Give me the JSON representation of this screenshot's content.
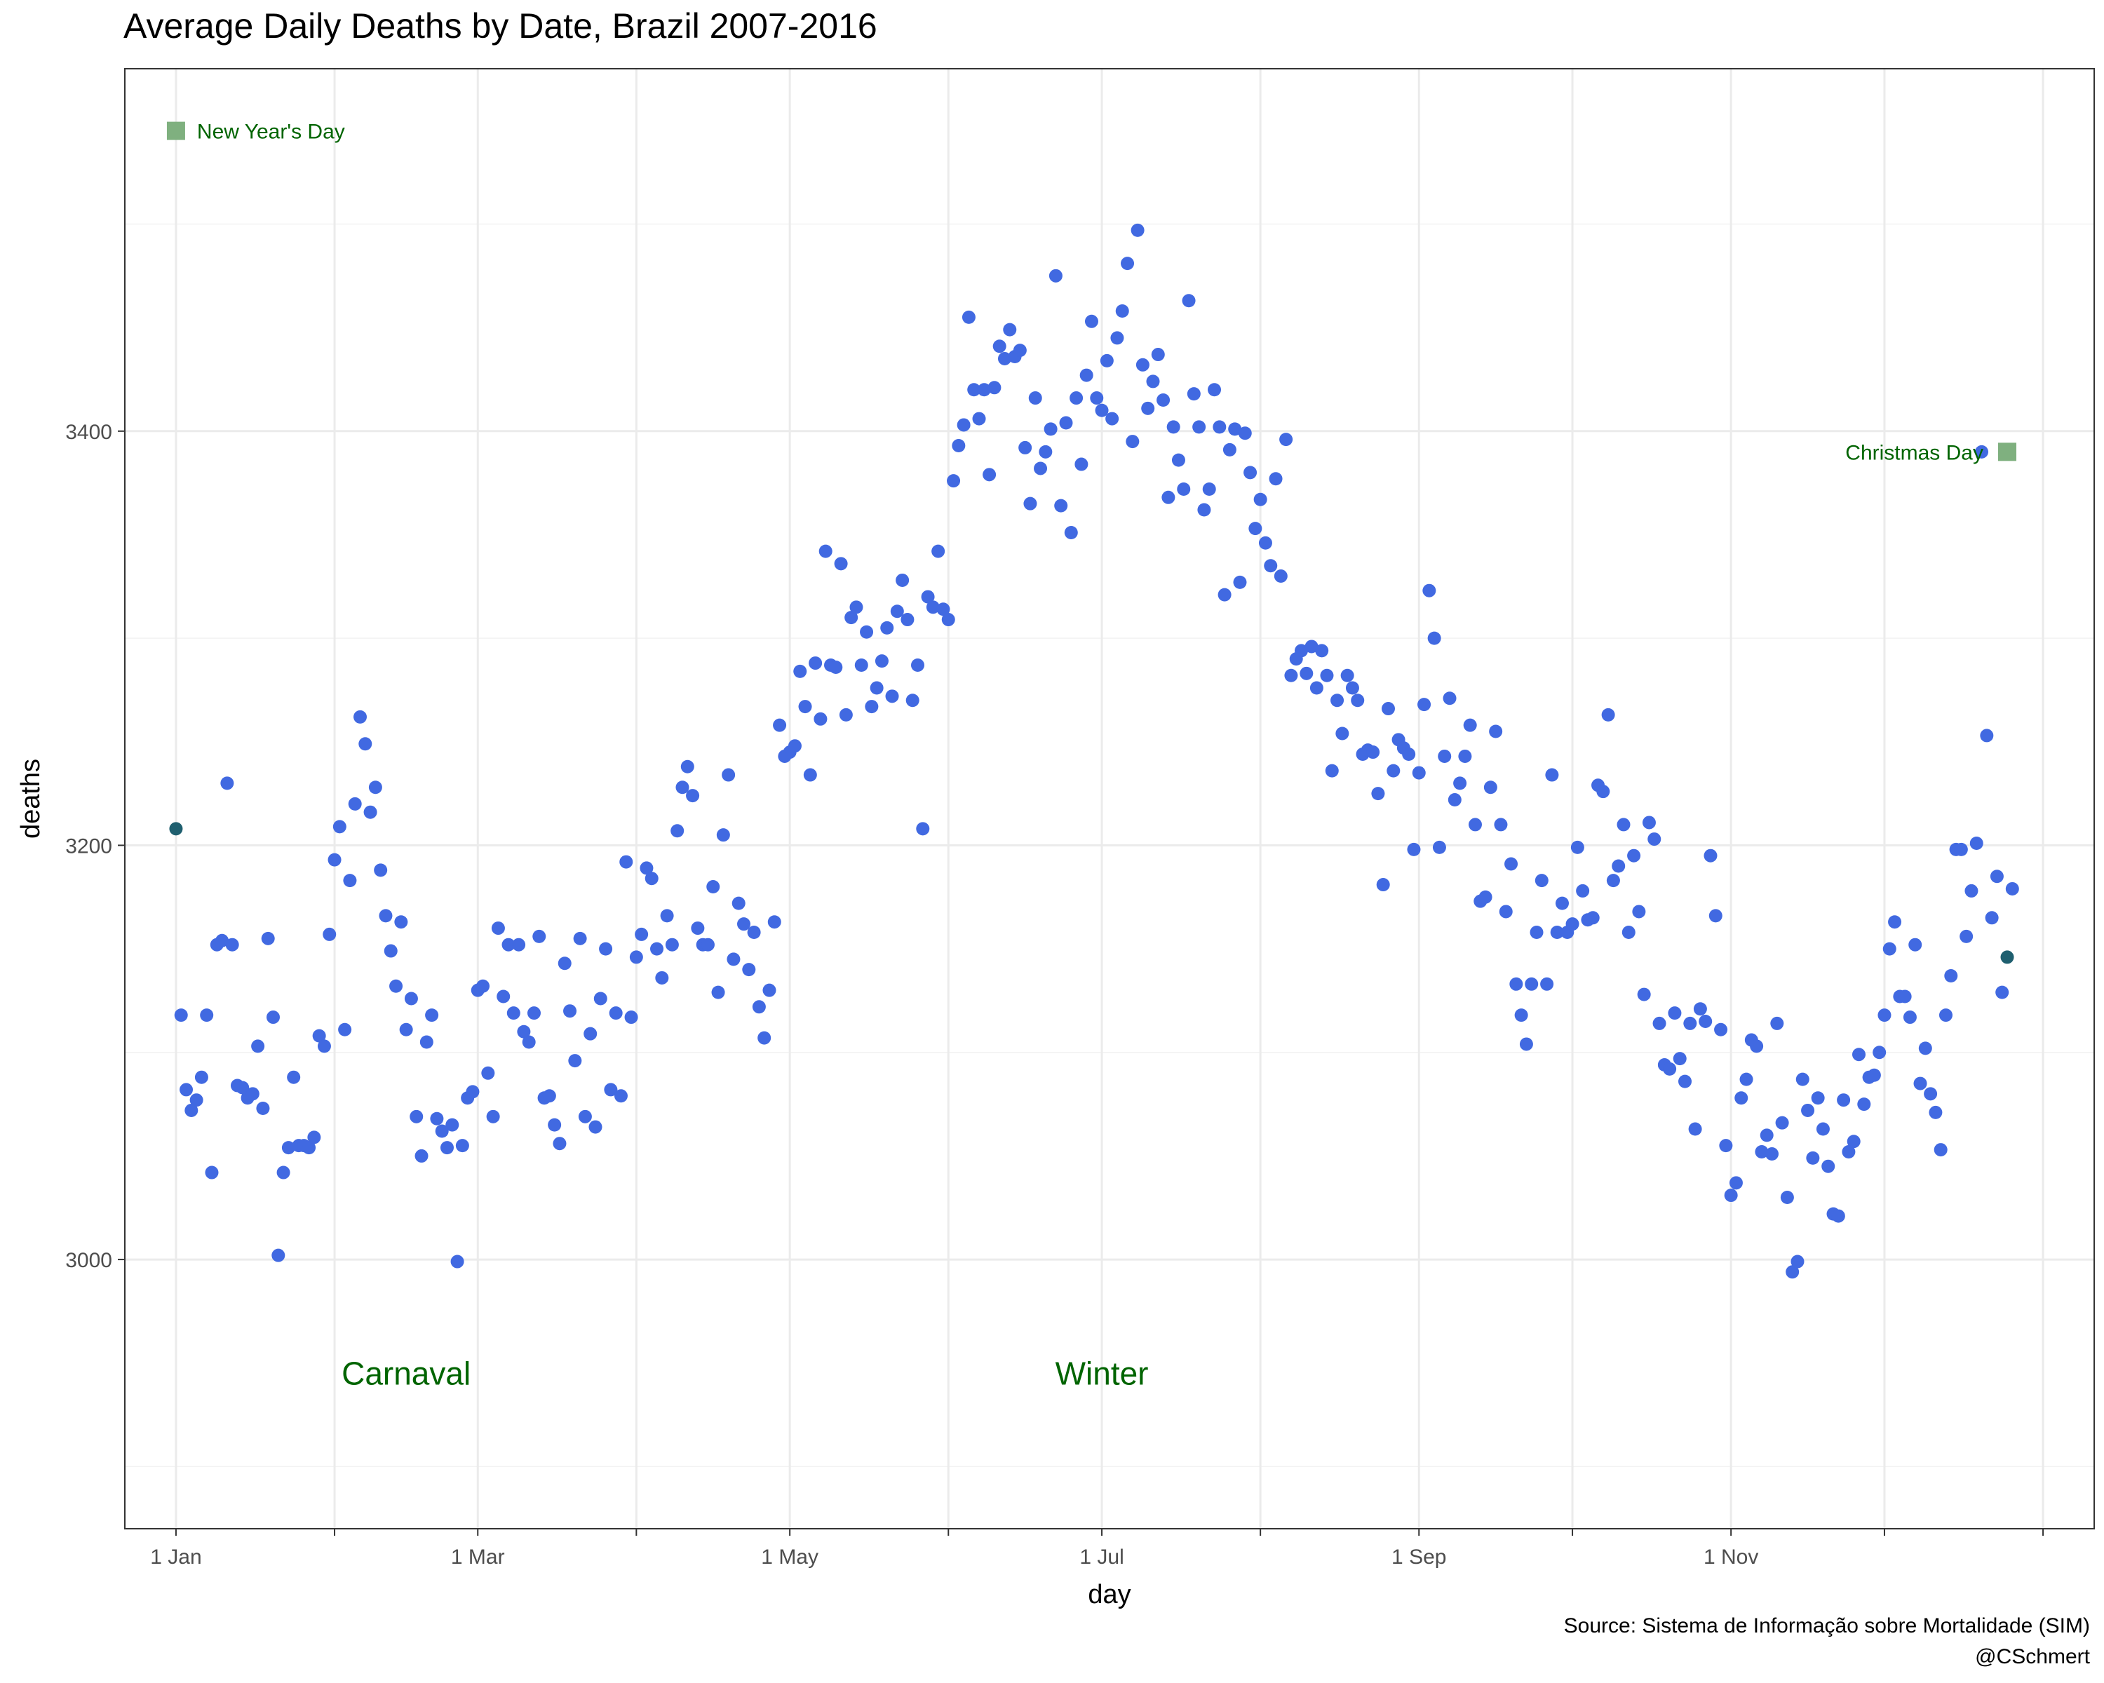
{
  "chart_data": {
    "type": "scatter",
    "title": "Average Daily Deaths by Date, Brazil 2007-2016",
    "xlabel": "day",
    "ylabel": "deaths",
    "xlim": [
      -10,
      375
    ],
    "ylim": [
      2870,
      3575
    ],
    "x_tick_labels": [
      "1 Jan",
      "1 Mar",
      "1 May",
      "1 Jul",
      "1 Sep",
      "1 Nov"
    ],
    "y_ticks": [
      3000,
      3200,
      3400
    ],
    "grid": true,
    "point_color": "#4169E1",
    "annotation_color": "#006400",
    "highlight_fill": "#7fb07f",
    "highlight_point_color": "#1f5f6f",
    "annotations": [
      {
        "label": "New Year's Day",
        "date": "1 Jan",
        "deaths": 3545
      },
      {
        "label": "Christmas Day",
        "date": "25 Dec",
        "deaths": 3390
      },
      {
        "label": "Carnaval",
        "date": "15 Feb",
        "deaths": 2945
      },
      {
        "label": "Winter",
        "date": "1 Jul",
        "deaths": 2945
      }
    ],
    "series": [
      {
        "values": [
          3208,
          3118,
          3082,
          3072,
          3077,
          3088,
          3118,
          3042,
          3152,
          3154,
          3230,
          3152,
          3084,
          3083,
          3078,
          3080,
          3103,
          3073,
          3155,
          3117,
          3002,
          3042,
          3054,
          3088,
          3055,
          3055,
          3054,
          3059,
          3108,
          3103,
          3157,
          3193,
          3209,
          3111,
          3183,
          3220,
          3262,
          3249,
          3216,
          3228,
          3188,
          3166,
          3149,
          3132,
          3163,
          3111,
          3126,
          3069,
          3050,
          3105,
          3118,
          3068,
          3062,
          3054,
          3065,
          2999,
          3055,
          3078,
          3081,
          3130,
          3132,
          3090,
          3069,
          3160,
          3127,
          3152,
          3119,
          3152,
          3110,
          3105,
          3119,
          3156,
          3078,
          3079,
          3065,
          3056,
          3143,
          3120,
          3096,
          3155,
          3069,
          3109,
          3064,
          3126,
          3150,
          3082,
          3119,
          3079,
          3192,
          3117,
          3146,
          3157,
          3189,
          3184,
          3150,
          3136,
          3166,
          3152,
          3207,
          3228,
          3238,
          3224,
          3160,
          3152,
          3152,
          3180,
          3129,
          3205,
          3234,
          3145,
          3172,
          3162,
          3140,
          3158,
          3122,
          3107,
          3130,
          3163,
          3258,
          3243,
          3245,
          3248,
          3284,
          3267,
          3234,
          3288,
          3261,
          3342,
          3287,
          3286,
          3336,
          3263,
          3310,
          3315,
          3287,
          3303,
          3267,
          3276,
          3289,
          3305,
          3272,
          3313,
          3328,
          3309,
          3270,
          3287,
          3208,
          3320,
          3315,
          3342,
          3314,
          3309,
          3376,
          3393,
          3403,
          3455,
          3420,
          3406,
          3420,
          3379,
          3421,
          3441,
          3435,
          3449,
          3436,
          3439,
          3392,
          3365,
          3416,
          3382,
          3390,
          3401,
          3475,
          3364,
          3404,
          3351,
          3416,
          3384,
          3427,
          3453,
          3416,
          3410,
          3434,
          3406,
          3445,
          3458,
          3481,
          3395,
          3497,
          3432,
          3411,
          3424,
          3437,
          3415,
          3368,
          3402,
          3386,
          3372,
          3463,
          3418,
          3402,
          3362,
          3372,
          3420,
          3402,
          3321,
          3391,
          3401,
          3327,
          3399,
          3380,
          3353,
          3367,
          3346,
          3335,
          3377,
          3330,
          3396,
          3282,
          3290,
          3294,
          3283,
          3296,
          3276,
          3294,
          3282,
          3236,
          3270,
          3254,
          3282,
          3276,
          3270,
          3244,
          3246,
          3245,
          3225,
          3181,
          3266,
          3236,
          3251,
          3247,
          3244,
          3198,
          3235,
          3268,
          3323,
          3300,
          3199,
          3243,
          3271,
          3222,
          3230,
          3243,
          3258,
          3210,
          3173,
          3175,
          3228,
          3255,
          3210,
          3168,
          3191,
          3133,
          3118,
          3104,
          3133,
          3158,
          3183,
          3133,
          3234,
          3158,
          3172,
          3158,
          3162,
          3199,
          3178,
          3164,
          3165,
          3229,
          3226,
          3263,
          3183,
          3190,
          3210,
          3158,
          3195,
          3168,
          3128,
          3211,
          3203,
          3114,
          3094,
          3092,
          3119,
          3097,
          3086,
          3114,
          3063,
          3121,
          3115,
          3195,
          3166,
          3111,
          3055,
          3031,
          3037,
          3078,
          3087,
          3106,
          3103,
          3052,
          3060,
          3051,
          3114,
          3066,
          3030,
          2994,
          2999,
          3087,
          3072,
          3049,
          3078,
          3063,
          3045,
          3022,
          3021,
          3077,
          3052,
          3057,
          3099,
          3075,
          3088,
          3089,
          3100,
          3118,
          3150,
          3163,
          3127,
          3127,
          3117,
          3152,
          3085,
          3102,
          3080,
          3071,
          3053,
          3118,
          3137,
          3198,
          3198,
          3156,
          3178,
          3201,
          3390,
          3253,
          3165,
          3185,
          3129,
          3146,
          3179
        ]
      }
    ]
  },
  "caption": {
    "source": "Source: Sistema de Informação sobre Mortalidade (SIM)",
    "author": "@CSchmert"
  }
}
